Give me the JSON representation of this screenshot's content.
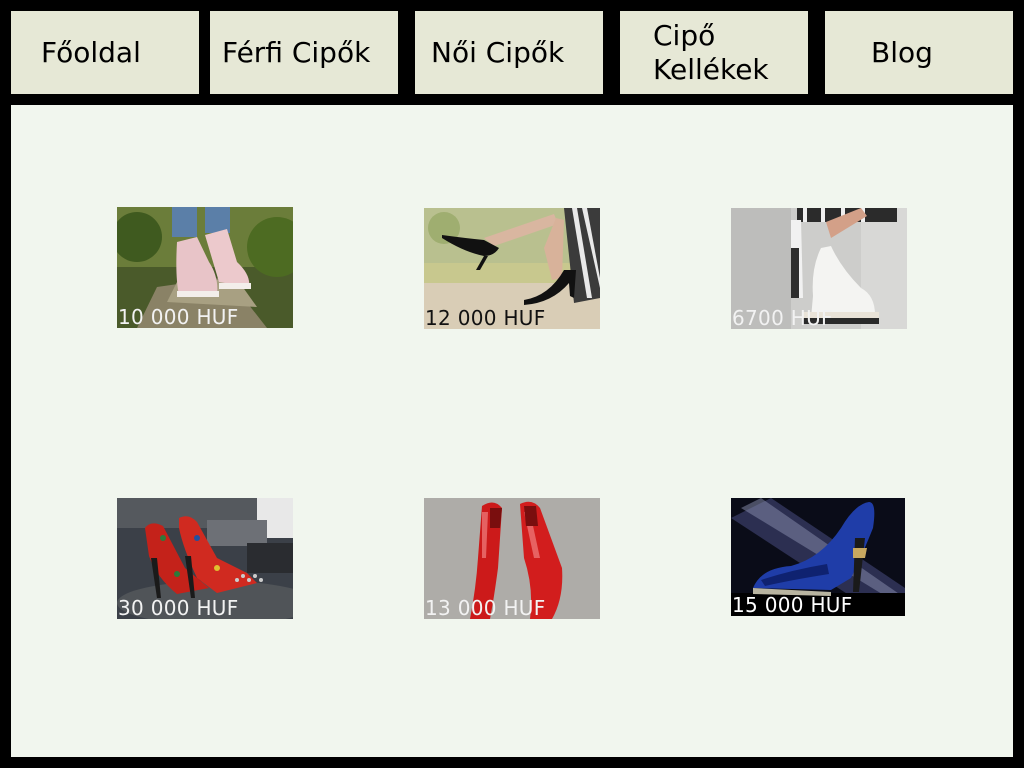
{
  "nav": {
    "items": [
      {
        "label": "Főoldal"
      },
      {
        "label": "Férfi Cipők"
      },
      {
        "label": "Női Cipők"
      },
      {
        "label": "Cipő Kellékek"
      },
      {
        "label": "Blog"
      }
    ]
  },
  "products": [
    {
      "price": "10 000 HUF",
      "image": "pink-sneakers-photo",
      "price_color": "#f2f2f2"
    },
    {
      "price": "12 000 HUF",
      "image": "black-heels-photo",
      "price_color": "#111111"
    },
    {
      "price": "6700 HUF",
      "image": "white-platform-shoes-photo",
      "price_color": "#f2f2f2"
    },
    {
      "price": "30 000 HUF",
      "image": "red-studded-sandals-photo",
      "price_color": "#f2f2f2"
    },
    {
      "price": "13 000 HUF",
      "image": "red-patent-heels-photo",
      "price_color": "#f2f2f2"
    },
    {
      "price": "15 000 HUF",
      "image": "blue-heel-photo",
      "price_color": "#ffffff"
    }
  ],
  "colors": {
    "nav_bg": "#e6e8d6",
    "content_bg": "#f1f6ee",
    "frame": "#000000"
  }
}
